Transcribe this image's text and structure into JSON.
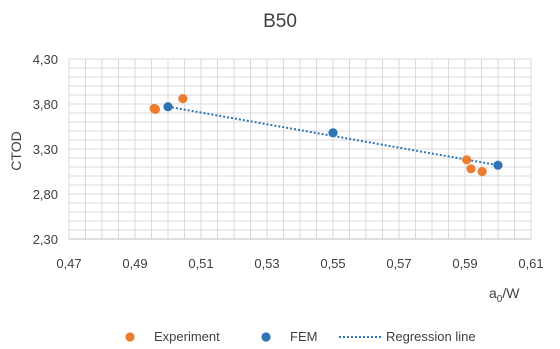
{
  "chart_data": {
    "type": "scatter",
    "title": "B50",
    "xlabel": "a",
    "xlabel_sub": "0",
    "xlabel_suffix": "/W",
    "ylabel": "CTOD",
    "xlim": [
      0.47,
      0.61
    ],
    "ylim": [
      2.3,
      4.3
    ],
    "x_ticks": [
      "0,47",
      "0,49",
      "0,51",
      "0,53",
      "0,55",
      "0,57",
      "0,59",
      "0,61"
    ],
    "y_ticks": [
      "2,30",
      "2,80",
      "3,30",
      "3,80",
      "4,30"
    ],
    "grid": true,
    "legend_position": "bottom",
    "series": [
      {
        "name": "Experiment",
        "color": "#ED7D31",
        "marker": "circle",
        "points": [
          {
            "x": 0.4958,
            "y": 3.75
          },
          {
            "x": 0.4962,
            "y": 3.74
          },
          {
            "x": 0.5045,
            "y": 3.86
          },
          {
            "x": 0.5905,
            "y": 3.18
          },
          {
            "x": 0.5918,
            "y": 3.08
          },
          {
            "x": 0.5952,
            "y": 3.05
          }
        ]
      },
      {
        "name": "FEM",
        "color": "#2E75B6",
        "marker": "circle",
        "points": [
          {
            "x": 0.5,
            "y": 3.77
          },
          {
            "x": 0.55,
            "y": 3.48
          },
          {
            "x": 0.6,
            "y": 3.12
          }
        ]
      },
      {
        "name": "Regression line",
        "color": "#2E75B6",
        "marker": "dotted-line",
        "points": [
          {
            "x": 0.5,
            "y": 3.77
          },
          {
            "x": 0.6,
            "y": 3.12
          }
        ]
      }
    ]
  }
}
